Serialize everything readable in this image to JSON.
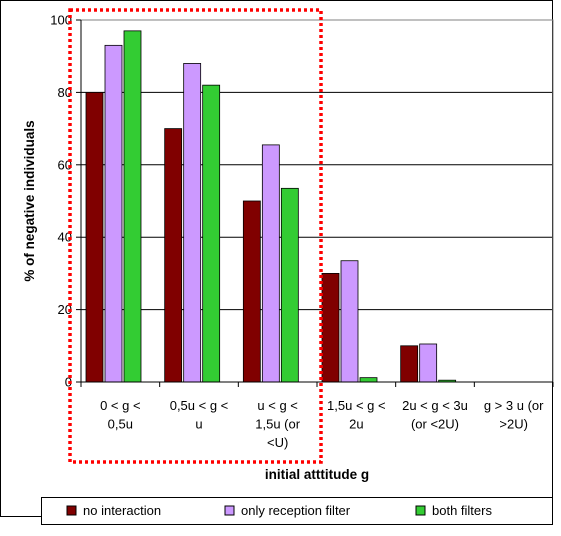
{
  "chart_data": {
    "type": "bar",
    "title": "",
    "xlabel": "initial atttitude g",
    "ylabel": "% of negative individuals",
    "ylim": [
      0,
      100
    ],
    "yticks": [
      0,
      20,
      40,
      60,
      80,
      100
    ],
    "grid": true,
    "legend_position": "bottom",
    "categories": [
      [
        "0 < g <",
        "0,5u"
      ],
      [
        "0,5u < g <",
        "u"
      ],
      [
        "u < g <",
        "1,5u (or",
        "<U)"
      ],
      [
        "1,5u < g <",
        "2u"
      ],
      [
        "2u < g < 3u",
        "(or <2U)"
      ],
      [
        "g  > 3 u (or",
        ">2U)"
      ]
    ],
    "series": [
      {
        "name": "no interaction",
        "color": "#800000",
        "values": [
          80,
          70,
          50,
          30,
          10,
          0
        ]
      },
      {
        "name": "only reception filter",
        "color": "#cc99ff",
        "values": [
          93,
          88,
          65.5,
          33.5,
          10.5,
          0
        ]
      },
      {
        "name": "both filters",
        "color": "#33cc33",
        "values": [
          97,
          82,
          53.5,
          1.2,
          0.5,
          0
        ]
      }
    ],
    "highlight_box": {
      "color": "#ff0000",
      "style": "dotted",
      "categories": [
        0,
        1,
        2
      ]
    }
  }
}
